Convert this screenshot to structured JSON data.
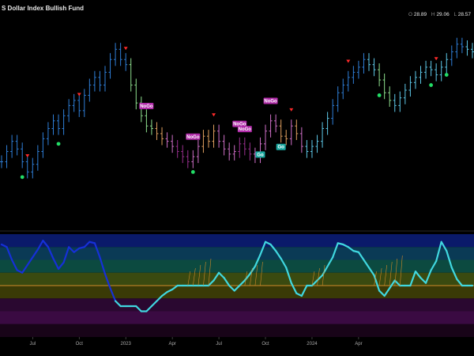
{
  "title": "S Dollar Index Bullish Fund",
  "ohlc": {
    "o_label": "O",
    "o": "28.89",
    "h_label": "H",
    "h": "29.06",
    "l_label": "L",
    "l": "28.57"
  },
  "x_ticks": [
    "Jul",
    "Oct",
    "2023",
    "Apr",
    "Jul",
    "Oct",
    "2024",
    "Apr"
  ],
  "colors": {
    "strong_up": "#2f7fd8",
    "up": "#5ec8e8",
    "weak_up": "#8fe08f",
    "weak_down": "#e0a060",
    "down": "#d070c8",
    "strong_down": "#9a3090",
    "down_arrow": "#ff2a2a",
    "up_dot": "#22dd66",
    "nogo_tag": "#b02aa8",
    "go_tag": "#1aa8a0",
    "osc_line_strong": "#1630d8",
    "osc_line": "#40d8e0",
    "zero_line": "#d08a2a"
  },
  "chart_data": {
    "type": "ohlc",
    "title": "S Dollar Index Bullish Fund",
    "x_ticks": [
      "Jul",
      "Oct",
      "2023",
      "Apr",
      "Jul",
      "Oct",
      "2024",
      "Apr"
    ],
    "price": [
      24.6,
      25.0,
      25.4,
      25.1,
      24.6,
      24.2,
      24.5,
      25.0,
      25.5,
      25.9,
      26.2,
      25.9,
      26.4,
      26.8,
      27.0,
      26.6,
      27.2,
      27.6,
      27.9,
      27.6,
      28.1,
      28.6,
      29.0,
      28.6,
      28.4,
      27.6,
      26.9,
      26.4,
      26.0,
      25.9,
      25.7,
      25.5,
      25.4,
      25.2,
      25.0,
      24.8,
      24.6,
      24.8,
      25.2,
      25.6,
      25.4,
      25.8,
      25.4,
      25.1,
      24.9,
      25.0,
      25.3,
      25.1,
      24.9,
      24.8,
      25.3,
      25.8,
      26.2,
      26.0,
      25.6,
      25.5,
      26.0,
      25.7,
      25.2,
      25.0,
      25.2,
      25.4,
      25.9,
      26.3,
      26.8,
      27.3,
      27.6,
      27.9,
      28.1,
      28.3,
      28.6,
      28.4,
      28.2,
      27.8,
      27.3,
      27.0,
      26.8,
      27.1,
      27.4,
      27.7,
      27.9,
      28.1,
      28.3,
      28.2,
      28.0,
      28.3,
      28.6,
      28.9,
      29.2,
      29.1,
      29.0,
      28.9
    ],
    "regime": [
      "su",
      "su",
      "su",
      "su",
      "su",
      "su",
      "su",
      "su",
      "su",
      "su",
      "su",
      "su",
      "su",
      "su",
      "su",
      "su",
      "su",
      "su",
      "su",
      "su",
      "su",
      "su",
      "su",
      "su",
      "su",
      "wu",
      "wu",
      "wu",
      "wu",
      "wu",
      "wd",
      "wd",
      "dn",
      "dn",
      "sd",
      "sd",
      "sd",
      "dn",
      "dn",
      "wd",
      "wd",
      "wd",
      "dn",
      "dn",
      "dn",
      "dn",
      "sd",
      "sd",
      "sd",
      "dn",
      "dn",
      "dn",
      "dn",
      "dn",
      "wd",
      "wd",
      "dn",
      "wd",
      "dn",
      "up",
      "up",
      "up",
      "up",
      "up",
      "su",
      "su",
      "su",
      "su",
      "su",
      "su",
      "su",
      "up",
      "up",
      "wu",
      "wu",
      "wu",
      "up",
      "up",
      "up",
      "up",
      "up",
      "up",
      "up",
      "up",
      "up",
      "up",
      "up",
      "su",
      "su",
      "su",
      "up",
      "up"
    ],
    "osc": [
      3.2,
      3.0,
      2.0,
      1.2,
      1.0,
      1.6,
      2.2,
      2.8,
      3.5,
      3.0,
      2.1,
      1.3,
      1.8,
      3.0,
      2.6,
      2.9,
      3.0,
      3.4,
      3.3,
      2.2,
      0.9,
      -0.2,
      -1.2,
      -1.6,
      -1.6,
      -1.6,
      -1.6,
      -2.0,
      -2.0,
      -1.6,
      -1.2,
      -0.8,
      -0.5,
      -0.3,
      0.0,
      0.0,
      0.0,
      0.0,
      0.0,
      0.0,
      0.0,
      0.4,
      1.0,
      0.6,
      0.0,
      -0.4,
      0.0,
      0.4,
      0.9,
      1.5,
      2.4,
      3.4,
      3.2,
      2.7,
      2.1,
      1.4,
      0.2,
      -0.6,
      -0.8,
      0.0,
      0.0,
      0.4,
      0.8,
      1.5,
      2.2,
      3.3,
      3.2,
      3.0,
      2.7,
      2.6,
      2.0,
      1.4,
      0.8,
      -0.4,
      -0.8,
      -0.2,
      0.4,
      0.0,
      0.0,
      0.0,
      1.1,
      0.6,
      0.2,
      1.2,
      1.9,
      3.4,
      2.7,
      1.4,
      0.5,
      0.0,
      0.0,
      0.0
    ],
    "down_arrows": [
      5,
      15,
      24,
      41,
      56,
      67,
      84
    ],
    "up_dots": [
      4,
      11,
      37,
      73,
      83,
      86
    ],
    "tags": [
      {
        "i": 28,
        "text": "NoGo"
      },
      {
        "i": 37,
        "text": "NoGo"
      },
      {
        "i": 46,
        "text": "NoGo"
      },
      {
        "i": 47,
        "text": "NoGo"
      },
      {
        "i": 52,
        "text": "NoGo"
      },
      {
        "i": 50,
        "text": "Go"
      },
      {
        "i": 54,
        "text": "Go"
      }
    ],
    "ylim": [
      23.5,
      30.0
    ],
    "osc_ylim": [
      -4,
      4
    ]
  }
}
